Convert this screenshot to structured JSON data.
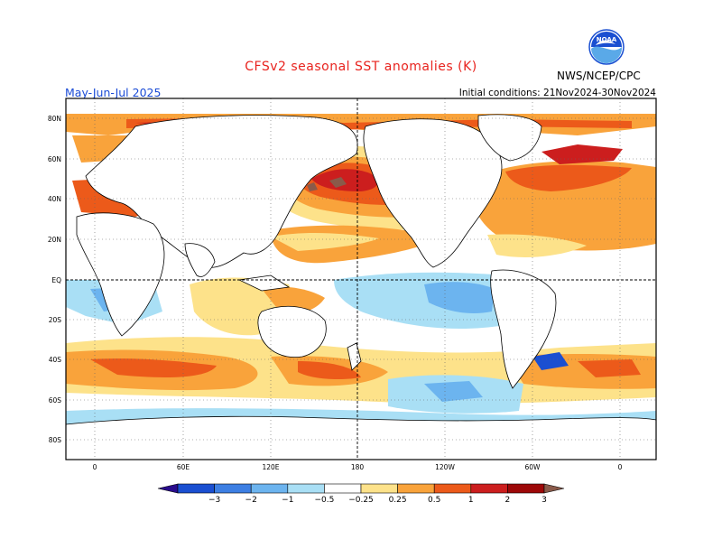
{
  "title": "CFSv2 seasonal SST anomalies (K)",
  "season": "May-Jun-Jul 2025",
  "initial_conditions": "Initial conditions: 21Nov2024-30Nov2024",
  "agency": "NWS/NCEP/CPC",
  "logo": {
    "text": "NOAA"
  },
  "lat_labels": [
    "80N",
    "60N",
    "40N",
    "20N",
    "EQ",
    "20S",
    "40S",
    "60S",
    "80S"
  ],
  "lon_labels": [
    "0",
    "60E",
    "120E",
    "180",
    "120W",
    "60W",
    "0"
  ],
  "colorbar": {
    "labels": [
      "−3",
      "−2",
      "−1",
      "−0.5",
      "−0.25",
      "0.25",
      "0.5",
      "1",
      "2",
      "3"
    ],
    "colors": [
      "#2a0c8c",
      "#1a4fd1",
      "#3d7fe3",
      "#6cb4ef",
      "#a9dff5",
      "#ffffff",
      "#fde28a",
      "#f9a33b",
      "#ec5a1a",
      "#cc1e1e",
      "#9d0808",
      "#8a5a4a"
    ]
  },
  "anomaly_colors": {
    "strong_cold": "#1a4fd1",
    "cold": "#6cb4ef",
    "weak_cold": "#a9dff5",
    "weak_warm": "#fde28a",
    "warm": "#f9a33b",
    "hot": "#ec5a1a",
    "very_hot": "#cc1e1e",
    "extreme": "#8a5a4a"
  }
}
